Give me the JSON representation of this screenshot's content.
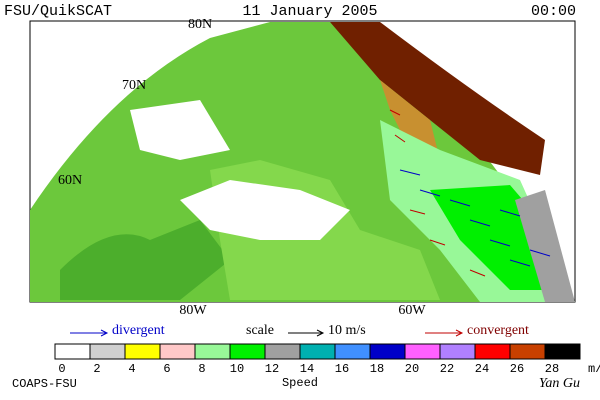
{
  "header": {
    "left": "FSU/QuikSCAT",
    "center": "11 January 2005",
    "right": "00:00"
  },
  "map": {
    "lat_labels": [
      "80N",
      "70N",
      "60N"
    ],
    "lon_labels": [
      "80W",
      "60W"
    ]
  },
  "legend": {
    "divergent": "divergent",
    "scale": "scale",
    "scale_value": "10 m/s",
    "convergent": "convergent"
  },
  "colorbar": {
    "ticks": [
      0,
      2,
      4,
      6,
      8,
      10,
      12,
      14,
      16,
      18,
      20,
      22,
      24,
      26,
      28
    ],
    "unit": "m/s",
    "label": "Speed",
    "colors": [
      "#ffffff",
      "#d0d0d0",
      "#ffff00",
      "#ffc8c8",
      "#98f898",
      "#00f000",
      "#a0a0a0",
      "#00b0b0",
      "#4090ff",
      "#0000c8",
      "#ff60ff",
      "#b080ff",
      "#ff0000",
      "#c84000",
      "#000000"
    ]
  },
  "footer": {
    "left": "COAPS-FSU",
    "right": "Yan Gu"
  }
}
